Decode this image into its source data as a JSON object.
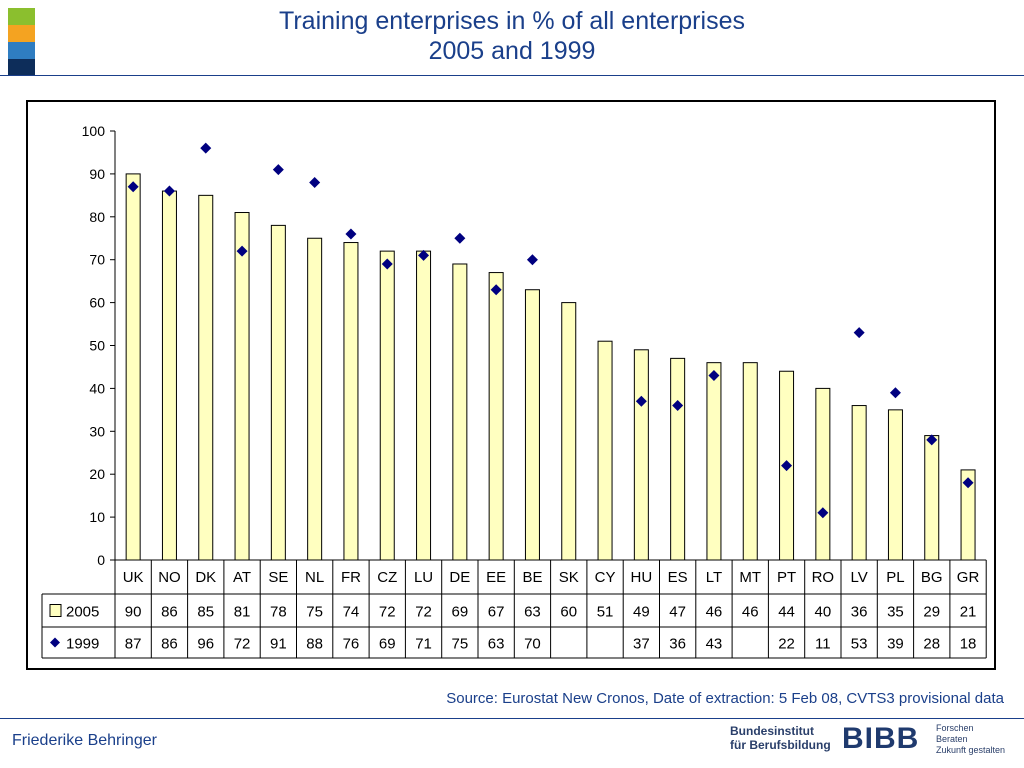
{
  "header": {
    "title_line1": "Training enterprises in % of all enterprises",
    "title_line2": "2005 and 1999",
    "logo_colors": [
      "#8bbf2e",
      "#f4a321",
      "#2f7dc1",
      "#0d2d5a"
    ]
  },
  "footer": {
    "source": "Source: Eurostat New Cronos, Date of extraction: 5 Feb 08, CVTS3 provisional data",
    "author": "Friederike Behringer",
    "org_name_line1": "Bundesinstitut",
    "org_name_line2": "für Berufsbildung",
    "org_abbr": "BIBB",
    "tagline_1": "Forschen",
    "tagline_2": "Beraten",
    "tagline_3": "Zukunft gestalten"
  },
  "chart_data": {
    "type": "bar",
    "categories": [
      "UK",
      "NO",
      "DK",
      "AT",
      "SE",
      "NL",
      "FR",
      "CZ",
      "LU",
      "DE",
      "EE",
      "BE",
      "SK",
      "CY",
      "HU",
      "ES",
      "LT",
      "MT",
      "PT",
      "RO",
      "LV",
      "PL",
      "BG",
      "GR"
    ],
    "series": [
      {
        "name": "2005",
        "kind": "bar",
        "color": "#ffffc0",
        "values": [
          90,
          86,
          85,
          81,
          78,
          75,
          74,
          72,
          72,
          69,
          67,
          63,
          60,
          51,
          49,
          47,
          46,
          46,
          44,
          40,
          36,
          35,
          29,
          21
        ]
      },
      {
        "name": "1999",
        "kind": "marker",
        "color": "#000080",
        "values": [
          87,
          86,
          96,
          72,
          91,
          88,
          76,
          69,
          71,
          75,
          63,
          70,
          null,
          null,
          37,
          36,
          43,
          null,
          22,
          11,
          53,
          39,
          28,
          18
        ]
      }
    ],
    "yticks": [
      "0",
      "10",
      "20",
      "30",
      "40",
      "50",
      "60",
      "70",
      "80",
      "90",
      "100"
    ],
    "ylim": [
      0,
      100
    ],
    "grid": false,
    "legend": "data-table"
  }
}
